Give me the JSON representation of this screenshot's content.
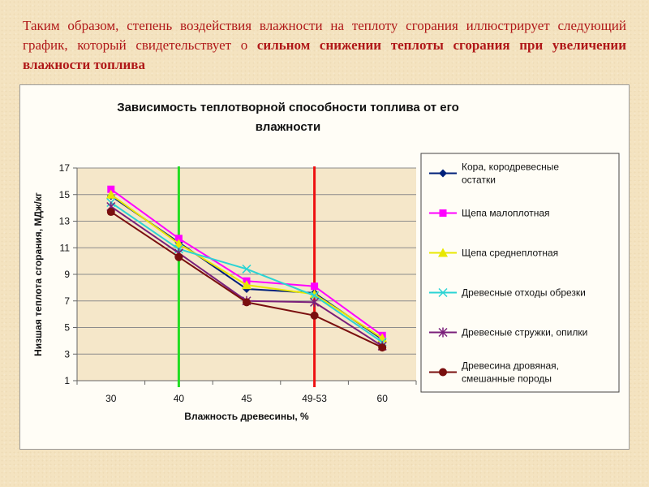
{
  "intro": {
    "text_plain": "Таким образом, степень воздействия влажности на теплоту сгорания иллюстрирует следующий график, который свидетельствует о ",
    "text_bold": "сильном снижении теплоты сгорания при увеличении влажности топлива"
  },
  "chart_data": {
    "type": "line",
    "title_line1": "Зависимость теплотворной способности топлива от его",
    "title_line2": "влажности",
    "xlabel": "Влажность древесины, %",
    "ylabel": "Низшая теплота сгорания, МДж/кг",
    "categories": [
      "30",
      "40",
      "45",
      "49-53",
      "60"
    ],
    "yticks": [
      1,
      3,
      5,
      7,
      9,
      11,
      13,
      15,
      17
    ],
    "ylim": [
      1,
      17
    ],
    "grid": true,
    "legend_position": "right",
    "reference_lines": [
      {
        "x": "40",
        "color": "#22dd22"
      },
      {
        "x": "49-53",
        "color": "#ee1111"
      }
    ],
    "series": [
      {
        "name": "Кора, кородревесные остатки",
        "legend_lines": [
          "Кора, кородревесные",
          "остатки"
        ],
        "color": "#00207a",
        "marker": "diamond",
        "values": [
          14.9,
          11.4,
          7.9,
          7.6,
          4.1
        ]
      },
      {
        "name": "Щепа малоплотная",
        "legend_lines": [
          "Щепа малоплотная"
        ],
        "color": "#ff00ff",
        "marker": "square",
        "values": [
          15.4,
          11.7,
          8.5,
          8.1,
          4.4
        ]
      },
      {
        "name": "Щепа среднеплотная",
        "legend_lines": [
          "Щепа среднеплотная"
        ],
        "color": "#e8e800",
        "marker": "triangle",
        "values": [
          15.0,
          11.3,
          8.2,
          7.5,
          4.2
        ]
      },
      {
        "name": "Древесные отходы обрезки",
        "legend_lines": [
          "Древесные отходы обрезки"
        ],
        "color": "#2ad4d4",
        "marker": "x",
        "values": [
          14.4,
          10.9,
          9.4,
          7.4,
          3.9
        ]
      },
      {
        "name": "Древесные стружки, опилки",
        "legend_lines": [
          "Древесные стружки, опилки"
        ],
        "color": "#7a1f7a",
        "marker": "star",
        "values": [
          14.1,
          10.6,
          7.0,
          6.9,
          3.6
        ]
      },
      {
        "name": "Древесина дровяная, смешанные породы",
        "legend_lines": [
          "Древесина дровяная,",
          "смешанные породы"
        ],
        "color": "#7a0f0f",
        "marker": "circle",
        "values": [
          13.7,
          10.3,
          6.9,
          5.9,
          3.5
        ]
      }
    ]
  }
}
